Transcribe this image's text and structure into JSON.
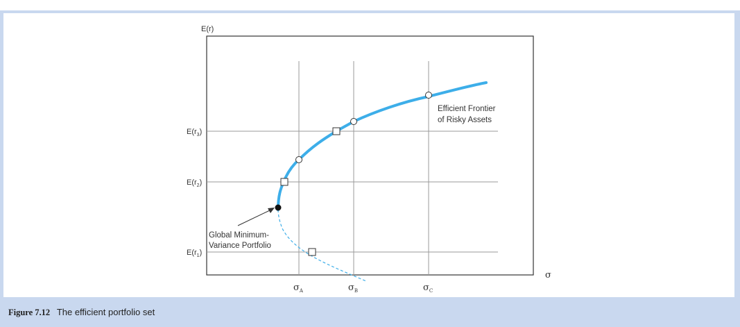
{
  "figure": {
    "y_axis_label": "E(r)",
    "x_axis_label": "σ",
    "y_ticks": [
      {
        "prefix": "E(r",
        "sub": "3",
        "suffix": ")"
      },
      {
        "prefix": "E(r",
        "sub": "2",
        "suffix": ")"
      },
      {
        "prefix": "E(r",
        "sub": "1",
        "suffix": ")"
      }
    ],
    "x_ticks": [
      {
        "symbol": "σ",
        "sub": "A"
      },
      {
        "symbol": "σ",
        "sub": "B"
      },
      {
        "symbol": "σ",
        "sub": "C"
      }
    ],
    "frontier_label_line1": "Efficient Frontier",
    "frontier_label_line2": "of Risky Assets",
    "gmv_label_line1": "Global Minimum-",
    "gmv_label_line2": "Variance Portfolio",
    "colors": {
      "frontier": "#3daee9",
      "grid": "#9a9a9a",
      "axis": "#333333"
    }
  },
  "caption": {
    "number": "Figure 7.12",
    "title": "The efficient portfolio set"
  }
}
